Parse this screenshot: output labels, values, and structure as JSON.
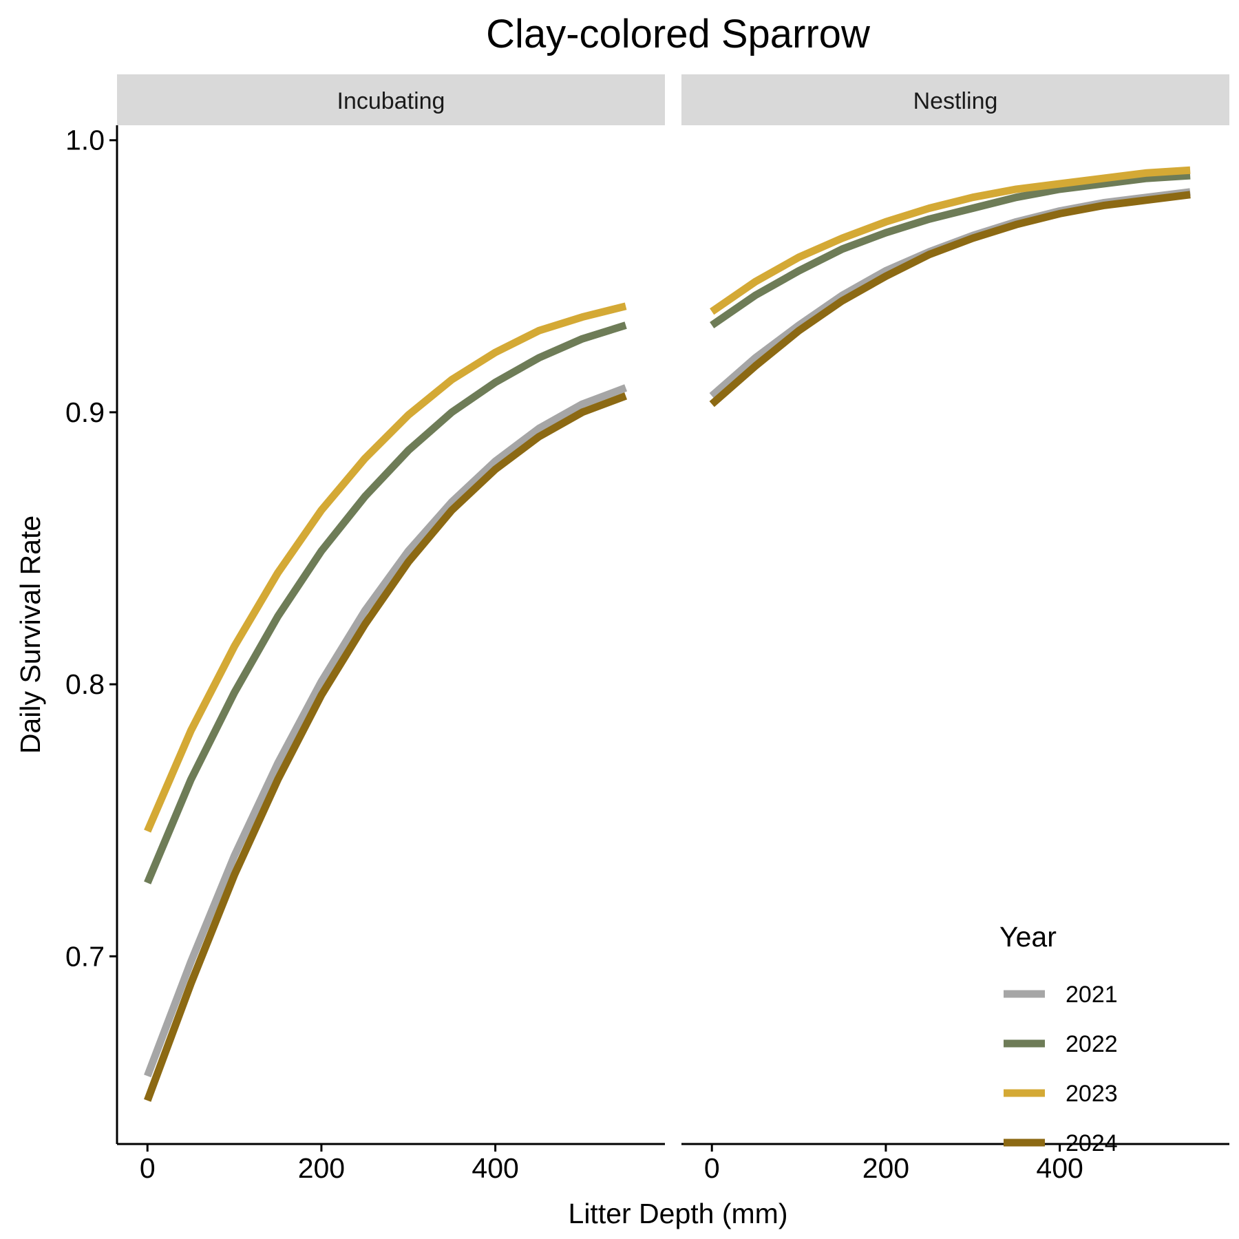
{
  "chart_data": {
    "type": "line",
    "title": "Clay-colored Sparrow",
    "xlabel": "Litter Depth (mm)",
    "ylabel": "Daily Survival Rate",
    "xlim": [
      -35,
      595
    ],
    "ylim": [
      0.631,
      1.0055
    ],
    "x_ticks": [
      0,
      200,
      400
    ],
    "x_tick_labels": [
      "0",
      "200",
      "400"
    ],
    "y_ticks": [
      0.7,
      0.8,
      0.9,
      1.0
    ],
    "y_tick_labels": [
      "0.7",
      "0.8",
      "0.9",
      "1.0"
    ],
    "grid": false,
    "legend_title": "Year",
    "legend_position": "bottom-right",
    "x": [
      0,
      50,
      100,
      150,
      200,
      250,
      300,
      350,
      400,
      450,
      500,
      550
    ],
    "panels": [
      {
        "label": "Incubating",
        "series": [
          {
            "name": "2021",
            "color": "#a6a6a6",
            "values": [
              0.656,
              0.698,
              0.737,
              0.771,
              0.801,
              0.827,
              0.849,
              0.867,
              0.882,
              0.894,
              0.903,
              0.909
            ]
          },
          {
            "name": "2022",
            "color": "#6e7c57",
            "values": [
              0.727,
              0.765,
              0.797,
              0.825,
              0.849,
              0.869,
              0.886,
              0.9,
              0.911,
              0.92,
              0.927,
              0.932
            ]
          },
          {
            "name": "2023",
            "color": "#d4a935",
            "values": [
              0.746,
              0.783,
              0.814,
              0.841,
              0.864,
              0.883,
              0.899,
              0.912,
              0.922,
              0.93,
              0.935,
              0.939
            ]
          },
          {
            "name": "2024",
            "color": "#8c6913",
            "values": [
              0.647,
              0.69,
              0.73,
              0.765,
              0.796,
              0.822,
              0.845,
              0.864,
              0.879,
              0.891,
              0.9,
              0.906
            ]
          }
        ]
      },
      {
        "label": "Nestling",
        "series": [
          {
            "name": "2021",
            "color": "#a6a6a6",
            "values": [
              0.906,
              0.92,
              0.932,
              0.943,
              0.952,
              0.959,
              0.965,
              0.97,
              0.974,
              0.977,
              0.979,
              0.981
            ]
          },
          {
            "name": "2022",
            "color": "#6e7c57",
            "values": [
              0.932,
              0.943,
              0.952,
              0.96,
              0.966,
              0.971,
              0.975,
              0.979,
              0.982,
              0.984,
              0.986,
              0.987
            ]
          },
          {
            "name": "2023",
            "color": "#d4a935",
            "values": [
              0.937,
              0.948,
              0.957,
              0.964,
              0.97,
              0.975,
              0.979,
              0.982,
              0.984,
              0.986,
              0.988,
              0.989
            ]
          },
          {
            "name": "2024",
            "color": "#8c6913",
            "values": [
              0.903,
              0.917,
              0.93,
              0.941,
              0.95,
              0.958,
              0.964,
              0.969,
              0.973,
              0.976,
              0.978,
              0.98
            ]
          }
        ]
      }
    ]
  }
}
